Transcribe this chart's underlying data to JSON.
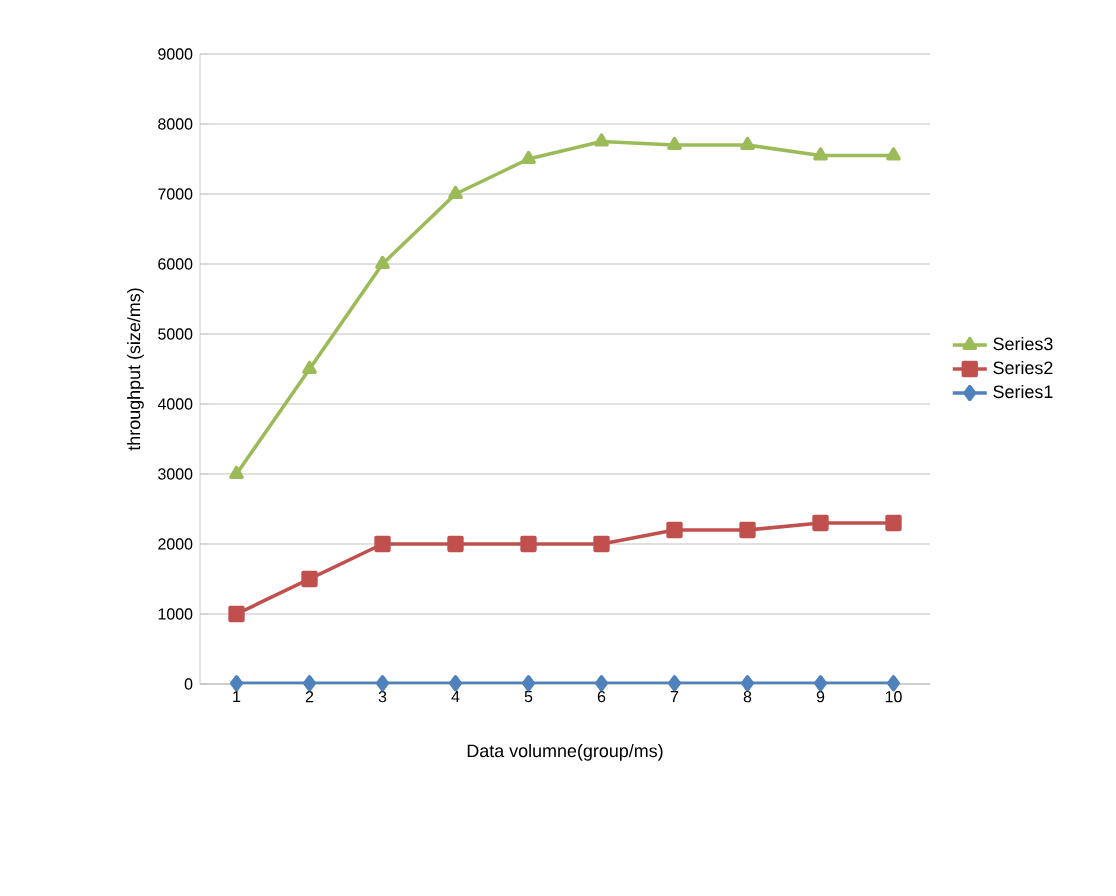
{
  "chart_data": {
    "type": "line",
    "xlabel": "Data volumne(group/ms)",
    "ylabel": "throughput (size/ms)",
    "categories": [
      "1",
      "2",
      "3",
      "4",
      "5",
      "6",
      "7",
      "8",
      "9",
      "10"
    ],
    "series": [
      {
        "name": "Series3",
        "color": "#9bbb59",
        "marker": "triangle",
        "values": [
          3000,
          4500,
          6000,
          7000,
          7500,
          7750,
          7700,
          7700,
          7550,
          7550
        ]
      },
      {
        "name": "Series2",
        "color": "#c0504d",
        "marker": "square",
        "values": [
          1000,
          1500,
          2000,
          2000,
          2000,
          2000,
          2200,
          2200,
          2300,
          2300
        ]
      },
      {
        "name": "Series1",
        "color": "#4f81bd",
        "marker": "diamond",
        "values": [
          10,
          10,
          10,
          10,
          10,
          10,
          10,
          10,
          10,
          10
        ]
      }
    ],
    "ylim": [
      0,
      9000
    ],
    "yticks": [
      0,
      1000,
      2000,
      3000,
      4000,
      5000,
      6000,
      7000,
      8000,
      9000
    ],
    "grid": "y",
    "legend": "right",
    "line_style": "solid"
  }
}
